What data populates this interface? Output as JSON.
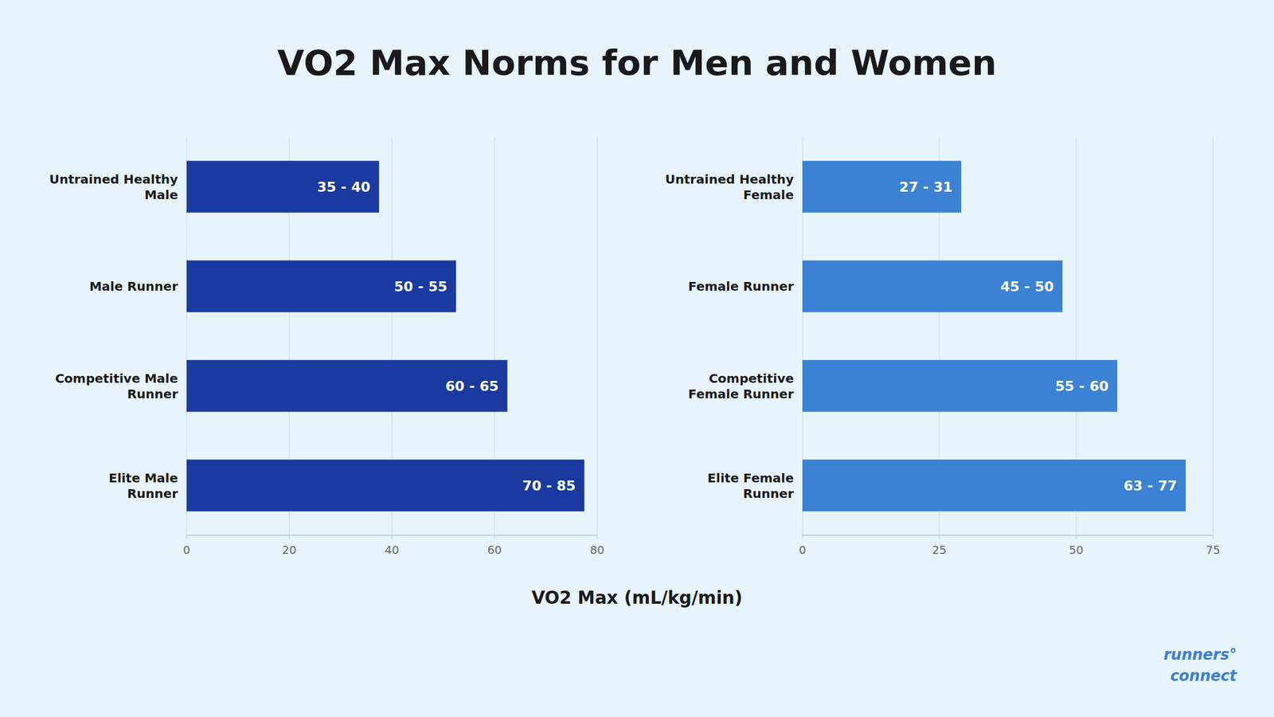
{
  "chart_data": [
    {
      "type": "bar",
      "orientation": "horizontal",
      "title": "VO2 Max Norms for Men and Women",
      "xlabel": "VO2 Max (mL/kg/min)",
      "categories": [
        "Untrained Healthy\nMale",
        "Male Runner",
        "Competitive Male\nRunner",
        "Elite Male\nRunner"
      ],
      "values": [
        37.5,
        52.5,
        62.5,
        77.5
      ],
      "value_labels": [
        "35 - 40",
        "50 - 55",
        "60 - 65",
        "70 - 85"
      ],
      "color": "#1a3a9f",
      "xlim": [
        0,
        80
      ],
      "xticks": [
        0,
        20,
        40,
        60,
        80
      ],
      "grid": true
    },
    {
      "type": "bar",
      "orientation": "horizontal",
      "categories": [
        "Untrained Healthy\nFemale",
        "Female Runner",
        "Competitive\nFemale Runner",
        "Elite Female\nRunner"
      ],
      "values": [
        29.0,
        47.5,
        57.5,
        70.0
      ],
      "value_labels": [
        "27 - 31",
        "45 - 50",
        "55 - 60",
        "63 - 77"
      ],
      "color": "#3b82d4",
      "xlim": [
        0,
        75
      ],
      "xticks": [
        0,
        25,
        50,
        75
      ],
      "grid": true,
      "annotations": [
        "runners°",
        "connect"
      ]
    }
  ]
}
